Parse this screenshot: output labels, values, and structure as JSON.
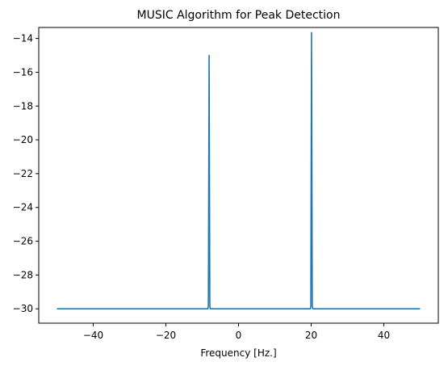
{
  "chart_data": {
    "type": "line",
    "title": "MUSIC Algorithm for Peak Detection",
    "xlabel": "Frequency [Hz.]",
    "ylabel": "",
    "xlim": [
      -55,
      55
    ],
    "ylim": [
      -30.85,
      -13.35
    ],
    "xticks": [
      -40,
      -20,
      0,
      20,
      40
    ],
    "yticks": [
      -30,
      -28,
      -26,
      -24,
      -22,
      -20,
      -18,
      -16,
      -14
    ],
    "grid": false,
    "legend": "none",
    "series": [
      {
        "color": "#1f77b4",
        "points": [
          [
            -50,
            -30.0
          ],
          [
            -8.4,
            -30.0
          ],
          [
            -8.3,
            -29.8
          ],
          [
            -8.1,
            -15.0
          ],
          [
            -7.9,
            -29.8
          ],
          [
            -7.8,
            -30.0
          ],
          [
            19.8,
            -30.0
          ],
          [
            19.9,
            -29.8
          ],
          [
            20.1,
            -13.65
          ],
          [
            20.3,
            -29.8
          ],
          [
            20.4,
            -30.0
          ],
          [
            50,
            -30.0
          ]
        ]
      }
    ]
  }
}
